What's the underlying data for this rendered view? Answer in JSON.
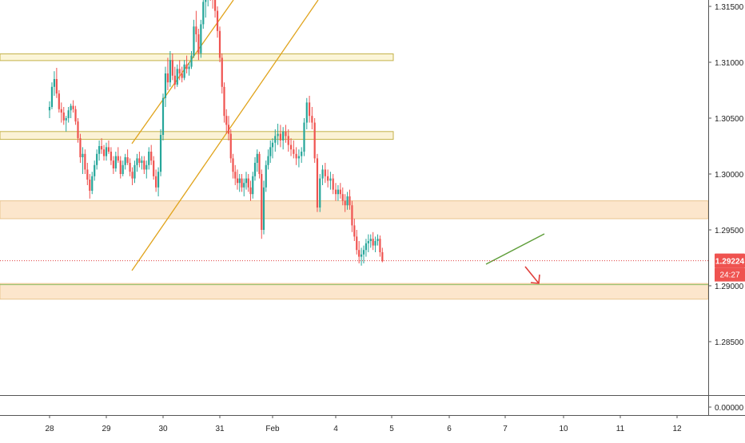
{
  "chart_data": {
    "type": "candlestick",
    "title": "",
    "price_axis": {
      "labels": [
        "1.31500",
        "1.31000",
        "1.30500",
        "1.30000",
        "1.29500",
        "1.29000",
        "1.28500"
      ],
      "values": [
        1.315,
        1.31,
        1.305,
        1.3,
        1.295,
        1.29,
        1.285
      ],
      "range": [
        1.281,
        1.3165
      ]
    },
    "indicator_axis": {
      "labels": [
        "0.00000"
      ],
      "values": [
        0
      ]
    },
    "time_axis": {
      "labels": [
        "28",
        "29",
        "30",
        "31",
        "Feb",
        "4",
        "5",
        "6",
        "7",
        "10",
        "11",
        "12"
      ],
      "index": [
        0,
        24,
        48,
        72,
        96,
        120,
        144,
        168,
        192,
        216,
        240,
        264
      ]
    },
    "current_price": {
      "value": 1.29224,
      "label": "1.29224",
      "countdown": "24:27"
    },
    "candles_hourly": [
      [
        1.3057,
        1.3065,
        1.305,
        1.306
      ],
      [
        1.306,
        1.3082,
        1.3058,
        1.3078
      ],
      [
        1.3078,
        1.3092,
        1.307,
        1.3085
      ],
      [
        1.3085,
        1.3095,
        1.3068,
        1.3072
      ],
      [
        1.3072,
        1.3075,
        1.3055,
        1.3058
      ],
      [
        1.3058,
        1.3064,
        1.3046,
        1.3055
      ],
      [
        1.3055,
        1.306,
        1.3044,
        1.3048
      ],
      [
        1.3048,
        1.3052,
        1.3038,
        1.305
      ],
      [
        1.305,
        1.306,
        1.3046,
        1.3057
      ],
      [
        1.3057,
        1.3063,
        1.305,
        1.3061
      ],
      [
        1.3061,
        1.3066,
        1.3055,
        1.3058
      ],
      [
        1.3058,
        1.3061,
        1.3044,
        1.3047
      ],
      [
        1.3047,
        1.305,
        1.3028,
        1.3032
      ],
      [
        1.3032,
        1.3036,
        1.301,
        1.3015
      ],
      [
        1.3015,
        1.3024,
        1.3,
        1.3018
      ],
      [
        1.3018,
        1.3022,
        1.3,
        1.3004
      ],
      [
        1.3004,
        1.301,
        1.299,
        1.2995
      ],
      [
        1.2995,
        1.3,
        1.2978,
        1.2985
      ],
      [
        1.2985,
        1.3002,
        1.2982,
        1.2998
      ],
      [
        1.2998,
        1.3012,
        1.2994,
        1.3008
      ],
      [
        1.3008,
        1.3022,
        1.3004,
        1.3018
      ],
      [
        1.3018,
        1.303,
        1.3012,
        1.3025
      ],
      [
        1.3025,
        1.3032,
        1.3018,
        1.3022
      ],
      [
        1.3022,
        1.3026,
        1.3012,
        1.3016
      ],
      [
        1.3016,
        1.3028,
        1.3012,
        1.3024
      ],
      [
        1.3024,
        1.303,
        1.3018,
        1.302
      ],
      [
        1.302,
        1.3024,
        1.3008,
        1.3012
      ],
      [
        1.3012,
        1.3016,
        1.3,
        1.3005
      ],
      [
        1.3005,
        1.302,
        1.3002,
        1.3016
      ],
      [
        1.3016,
        1.3024,
        1.301,
        1.3012
      ],
      [
        1.3012,
        1.3016,
        1.2996,
        1.3
      ],
      [
        1.3,
        1.3012,
        1.2998,
        1.3008
      ],
      [
        1.3008,
        1.3018,
        1.3004,
        1.3015
      ],
      [
        1.3015,
        1.3022,
        1.3008,
        1.301
      ],
      [
        1.301,
        1.3014,
        1.2998,
        1.3002
      ],
      [
        1.3002,
        1.3006,
        1.299,
        1.2996
      ],
      [
        1.2996,
        1.3012,
        1.2992,
        1.3008
      ],
      [
        1.3008,
        1.3018,
        1.3002,
        1.3014
      ],
      [
        1.3014,
        1.302,
        1.3006,
        1.301
      ],
      [
        1.301,
        1.3016,
        1.3004,
        1.3012
      ],
      [
        1.3012,
        1.3016,
        1.3,
        1.3004
      ],
      [
        1.3004,
        1.3012,
        1.2996,
        1.3008
      ],
      [
        1.3008,
        1.3024,
        1.3004,
        1.302
      ],
      [
        1.302,
        1.3026,
        1.3008,
        1.3012
      ],
      [
        1.3012,
        1.3016,
        1.2995,
        1.2998
      ],
      [
        1.2998,
        1.3004,
        1.2984,
        1.2988
      ],
      [
        1.2988,
        1.3006,
        1.298,
        1.3002
      ],
      [
        1.3002,
        1.304,
        1.2998,
        1.3035
      ],
      [
        1.3035,
        1.3072,
        1.303,
        1.3068
      ],
      [
        1.3068,
        1.3096,
        1.306,
        1.309
      ],
      [
        1.309,
        1.3104,
        1.3075,
        1.3082
      ],
      [
        1.3082,
        1.311,
        1.3078,
        1.3102
      ],
      [
        1.3102,
        1.3108,
        1.3084,
        1.3088
      ],
      [
        1.3088,
        1.3096,
        1.3076,
        1.308
      ],
      [
        1.308,
        1.3098,
        1.3078,
        1.3094
      ],
      [
        1.3094,
        1.3102,
        1.3084,
        1.309
      ],
      [
        1.309,
        1.3096,
        1.3082,
        1.3086
      ],
      [
        1.3086,
        1.3102,
        1.3084,
        1.3098
      ],
      [
        1.3098,
        1.3106,
        1.309,
        1.3094
      ],
      [
        1.3094,
        1.31,
        1.3088,
        1.3096
      ],
      [
        1.3096,
        1.311,
        1.3094,
        1.3106
      ],
      [
        1.3106,
        1.3138,
        1.3104,
        1.3132
      ],
      [
        1.3132,
        1.3146,
        1.3118,
        1.3125
      ],
      [
        1.3125,
        1.313,
        1.3102,
        1.3108
      ],
      [
        1.3108,
        1.3138,
        1.3104,
        1.3134
      ],
      [
        1.3134,
        1.316,
        1.313,
        1.3154
      ],
      [
        1.3154,
        1.3168,
        1.314,
        1.316
      ],
      [
        1.316,
        1.3172,
        1.315,
        1.3166
      ],
      [
        1.3166,
        1.3172,
        1.3155,
        1.3164
      ],
      [
        1.3164,
        1.3169,
        1.3148,
        1.316
      ],
      [
        1.316,
        1.3166,
        1.314,
        1.3146
      ],
      [
        1.3146,
        1.315,
        1.3122,
        1.3128
      ],
      [
        1.3128,
        1.3132,
        1.31,
        1.3104
      ],
      [
        1.3104,
        1.3108,
        1.3072,
        1.3078
      ],
      [
        1.3078,
        1.3082,
        1.3046,
        1.3052
      ],
      [
        1.3052,
        1.3058,
        1.3036,
        1.3044
      ],
      [
        1.3044,
        1.3052,
        1.303,
        1.3036
      ],
      [
        1.3036,
        1.304,
        1.301,
        1.3014
      ],
      [
        1.3014,
        1.3018,
        1.2996,
        1.3002
      ],
      [
        1.3002,
        1.3008,
        1.299,
        1.2996
      ],
      [
        1.2996,
        1.3004,
        1.2986,
        1.2992
      ],
      [
        1.2992,
        1.3,
        1.2984,
        1.2996
      ],
      [
        1.2996,
        1.3,
        1.2984,
        1.2988
      ],
      [
        1.2988,
        1.2996,
        1.298,
        1.2992
      ],
      [
        1.2992,
        1.3002,
        1.2986,
        1.2996
      ],
      [
        1.2996,
        1.3,
        1.2984,
        1.2988
      ],
      [
        1.2988,
        1.2994,
        1.2976,
        1.2982
      ],
      [
        1.2982,
        1.3002,
        1.2978,
        1.2998
      ],
      [
        1.2998,
        1.3015,
        1.2994,
        1.301
      ],
      [
        1.301,
        1.3022,
        1.3002,
        1.3018
      ],
      [
        1.3018,
        1.302,
        1.2996,
        1.3
      ],
      [
        1.3,
        1.3004,
        1.2942,
        1.295
      ],
      [
        1.295,
        1.2994,
        1.2946,
        1.2988
      ],
      [
        1.2988,
        1.3012,
        1.2984,
        1.3008
      ],
      [
        1.3008,
        1.3022,
        1.3004,
        1.3016
      ],
      [
        1.3016,
        1.303,
        1.301,
        1.3024
      ],
      [
        1.3024,
        1.3032,
        1.3014,
        1.3028
      ],
      [
        1.3028,
        1.304,
        1.302,
        1.3034
      ],
      [
        1.3034,
        1.3045,
        1.3026,
        1.3036
      ],
      [
        1.3036,
        1.3044,
        1.3024,
        1.303
      ],
      [
        1.303,
        1.3042,
        1.3022,
        1.3038
      ],
      [
        1.3038,
        1.3044,
        1.3028,
        1.3034
      ],
      [
        1.3034,
        1.304,
        1.302,
        1.3026
      ],
      [
        1.3026,
        1.3032,
        1.3016,
        1.3022
      ],
      [
        1.3022,
        1.303,
        1.3014,
        1.3018
      ],
      [
        1.3018,
        1.3024,
        1.3008,
        1.3014
      ],
      [
        1.3014,
        1.3022,
        1.3006,
        1.3016
      ],
      [
        1.3016,
        1.3024,
        1.301,
        1.302
      ],
      [
        1.302,
        1.305,
        1.3016,
        1.3046
      ],
      [
        1.3046,
        1.3068,
        1.304,
        1.3064
      ],
      [
        1.3064,
        1.307,
        1.3046,
        1.3052
      ],
      [
        1.3052,
        1.306,
        1.304,
        1.3046
      ],
      [
        1.3046,
        1.305,
        1.301,
        1.3014
      ],
      [
        1.3014,
        1.3018,
        1.2966,
        1.297
      ],
      [
        1.297,
        1.3,
        1.2966,
        1.2996
      ],
      [
        1.2996,
        1.3008,
        1.299,
        1.3004
      ],
      [
        1.3004,
        1.301,
        1.2992,
        1.2998
      ],
      [
        1.2998,
        1.3004,
        1.2988,
        1.2994
      ],
      [
        1.2994,
        1.3002,
        1.2986,
        1.2996
      ],
      [
        1.2996,
        1.3,
        1.2982,
        1.2986
      ],
      [
        1.2986,
        1.2992,
        1.2976,
        1.2982
      ],
      [
        1.2982,
        1.299,
        1.2976,
        1.2986
      ],
      [
        1.2986,
        1.2992,
        1.2978,
        1.2982
      ],
      [
        1.2982,
        1.2988,
        1.2972,
        1.2976
      ],
      [
        1.2976,
        1.2982,
        1.2966,
        1.2972
      ],
      [
        1.2972,
        1.2984,
        1.2968,
        1.298
      ],
      [
        1.298,
        1.2986,
        1.2968,
        1.2972
      ],
      [
        1.2972,
        1.2976,
        1.2948,
        1.2954
      ],
      [
        1.2954,
        1.296,
        1.294,
        1.2944
      ],
      [
        1.2944,
        1.295,
        1.2928,
        1.2932
      ],
      [
        1.2932,
        1.294,
        1.292,
        1.2926
      ],
      [
        1.2926,
        1.2934,
        1.2918,
        1.2928
      ],
      [
        1.2928,
        1.2936,
        1.292,
        1.2932
      ],
      [
        1.2932,
        1.2942,
        1.2926,
        1.2938
      ],
      [
        1.2938,
        1.2946,
        1.293,
        1.294
      ],
      [
        1.294,
        1.2946,
        1.2934,
        1.2942
      ],
      [
        1.2942,
        1.2948,
        1.2932,
        1.2936
      ],
      [
        1.2936,
        1.2944,
        1.293,
        1.294
      ],
      [
        1.294,
        1.2946,
        1.2936,
        1.2942
      ],
      [
        1.2942,
        1.2945,
        1.2926,
        1.293
      ],
      [
        1.293,
        1.2934,
        1.2921,
        1.2922
      ]
    ],
    "analysis_drawings": [
      {
        "kind": "support_resistance_zone",
        "price_range": [
          1.31015,
          1.31075
        ],
        "color": "#b5a21b"
      },
      {
        "kind": "support_resistance_zone",
        "price_range": [
          1.3031,
          1.3038
        ],
        "color": "#b5a21b"
      },
      {
        "kind": "support_resistance_zone",
        "price_range": [
          1.296,
          1.2976
        ],
        "color": "#f0c58a"
      },
      {
        "kind": "support_resistance_zone",
        "price_range": [
          1.2888,
          1.2902
        ],
        "color": "#f0c58a"
      },
      {
        "kind": "ascending_channel_line",
        "color": "#e0a31b"
      },
      {
        "kind": "ascending_channel_line",
        "color": "#e0a31b"
      },
      {
        "kind": "ascending_trendline",
        "color": "#5f9e3a"
      },
      {
        "kind": "down_arrow",
        "color": "#e0403c"
      }
    ],
    "colors": {
      "up": "#26a69a",
      "down": "#ef5350",
      "price_line": "#e04040"
    },
    "grid": false,
    "legend": "none"
  }
}
